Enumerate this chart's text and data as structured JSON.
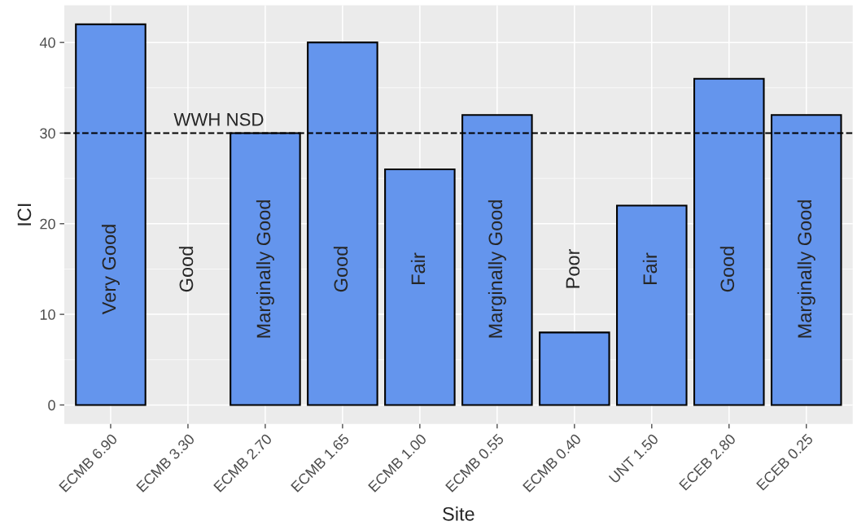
{
  "chart_data": {
    "type": "bar",
    "xlabel": "Site",
    "ylabel": "ICI",
    "categories": [
      "ECMB 6.90",
      "ECMB 3.30",
      "ECMB 2.70",
      "ECMB 1.65",
      "ECMB 1.00",
      "ECMB 0.55",
      "ECMB 0.40",
      "UNT 1.50",
      "ECEB 2.80",
      "ECEB 0.25"
    ],
    "values": [
      42,
      null,
      30,
      40,
      26,
      32,
      8,
      22,
      36,
      32
    ],
    "color": "#6495ed",
    "ylim": [
      -2.1,
      44.1
    ],
    "yticks": [
      0,
      10,
      20,
      30,
      40
    ],
    "grid": true,
    "ref_lines": [
      {
        "axis": "y",
        "value": 30,
        "label": "WWH NSD",
        "line_style": "dashed",
        "color": "#000000"
      }
    ],
    "annotations": [
      "Very Good",
      "Good",
      "Marginally Good",
      "Good",
      "Fair",
      "Marginally Good",
      "Poor",
      "Fair",
      "Good",
      "Marginally Good"
    ]
  }
}
